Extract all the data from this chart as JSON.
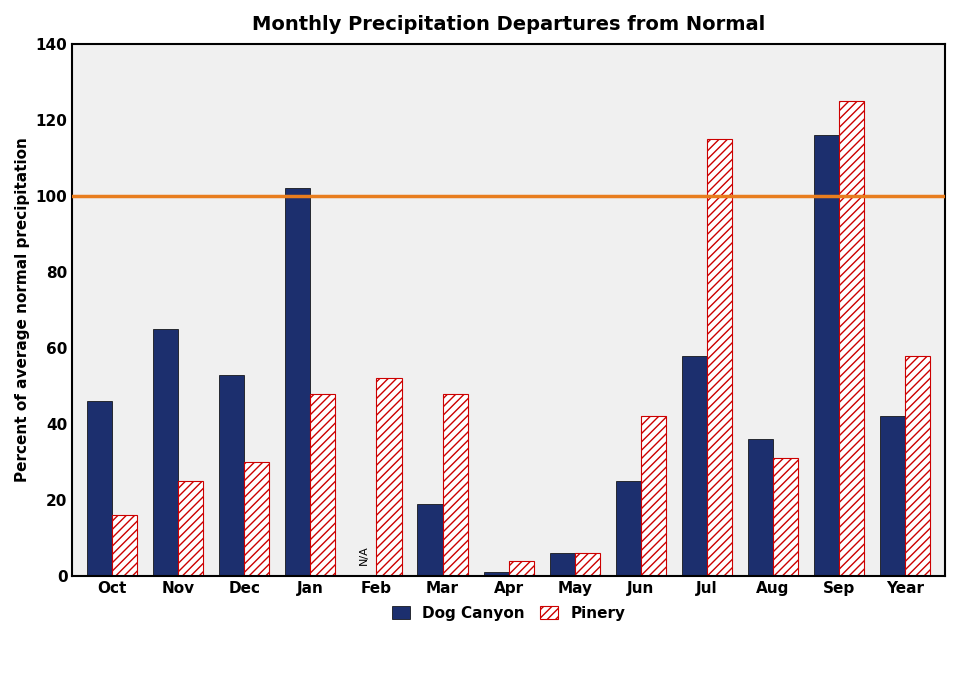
{
  "title": "Monthly Precipitation Departures from Normal",
  "ylabel": "Percent of average normal precipitation",
  "xlabel": "",
  "categories": [
    "Oct",
    "Nov",
    "Dec",
    "Jan",
    "Feb",
    "Mar",
    "Apr",
    "May",
    "Jun",
    "Jul",
    "Aug",
    "Sep",
    "Year"
  ],
  "dog_canyon": [
    46,
    65,
    53,
    102,
    null,
    19,
    1,
    6,
    25,
    58,
    36,
    116,
    42
  ],
  "pinery": [
    16,
    25,
    30,
    48,
    52,
    48,
    4,
    6,
    42,
    115,
    31,
    125,
    58
  ],
  "feb_label": "N/A",
  "reference_line": 100,
  "dog_canyon_color": "#1c2f6e",
  "pinery_color_face": "#ffffff",
  "pinery_color_hatch": "#cc0000",
  "pinery_edge_color": "#cc0000",
  "reference_line_color": "#e87d1e",
  "ylim": [
    0,
    140
  ],
  "yticks": [
    0,
    20,
    40,
    60,
    80,
    100,
    120,
    140
  ],
  "bar_width": 0.38,
  "figsize": [
    9.6,
    6.82
  ],
  "dpi": 100,
  "title_fontsize": 14,
  "label_fontsize": 11,
  "tick_fontsize": 11,
  "legend_fontsize": 11,
  "legend_labels": [
    "Dog Canyon",
    "Pinery"
  ],
  "axes_bg_color": "#f0f0f0"
}
